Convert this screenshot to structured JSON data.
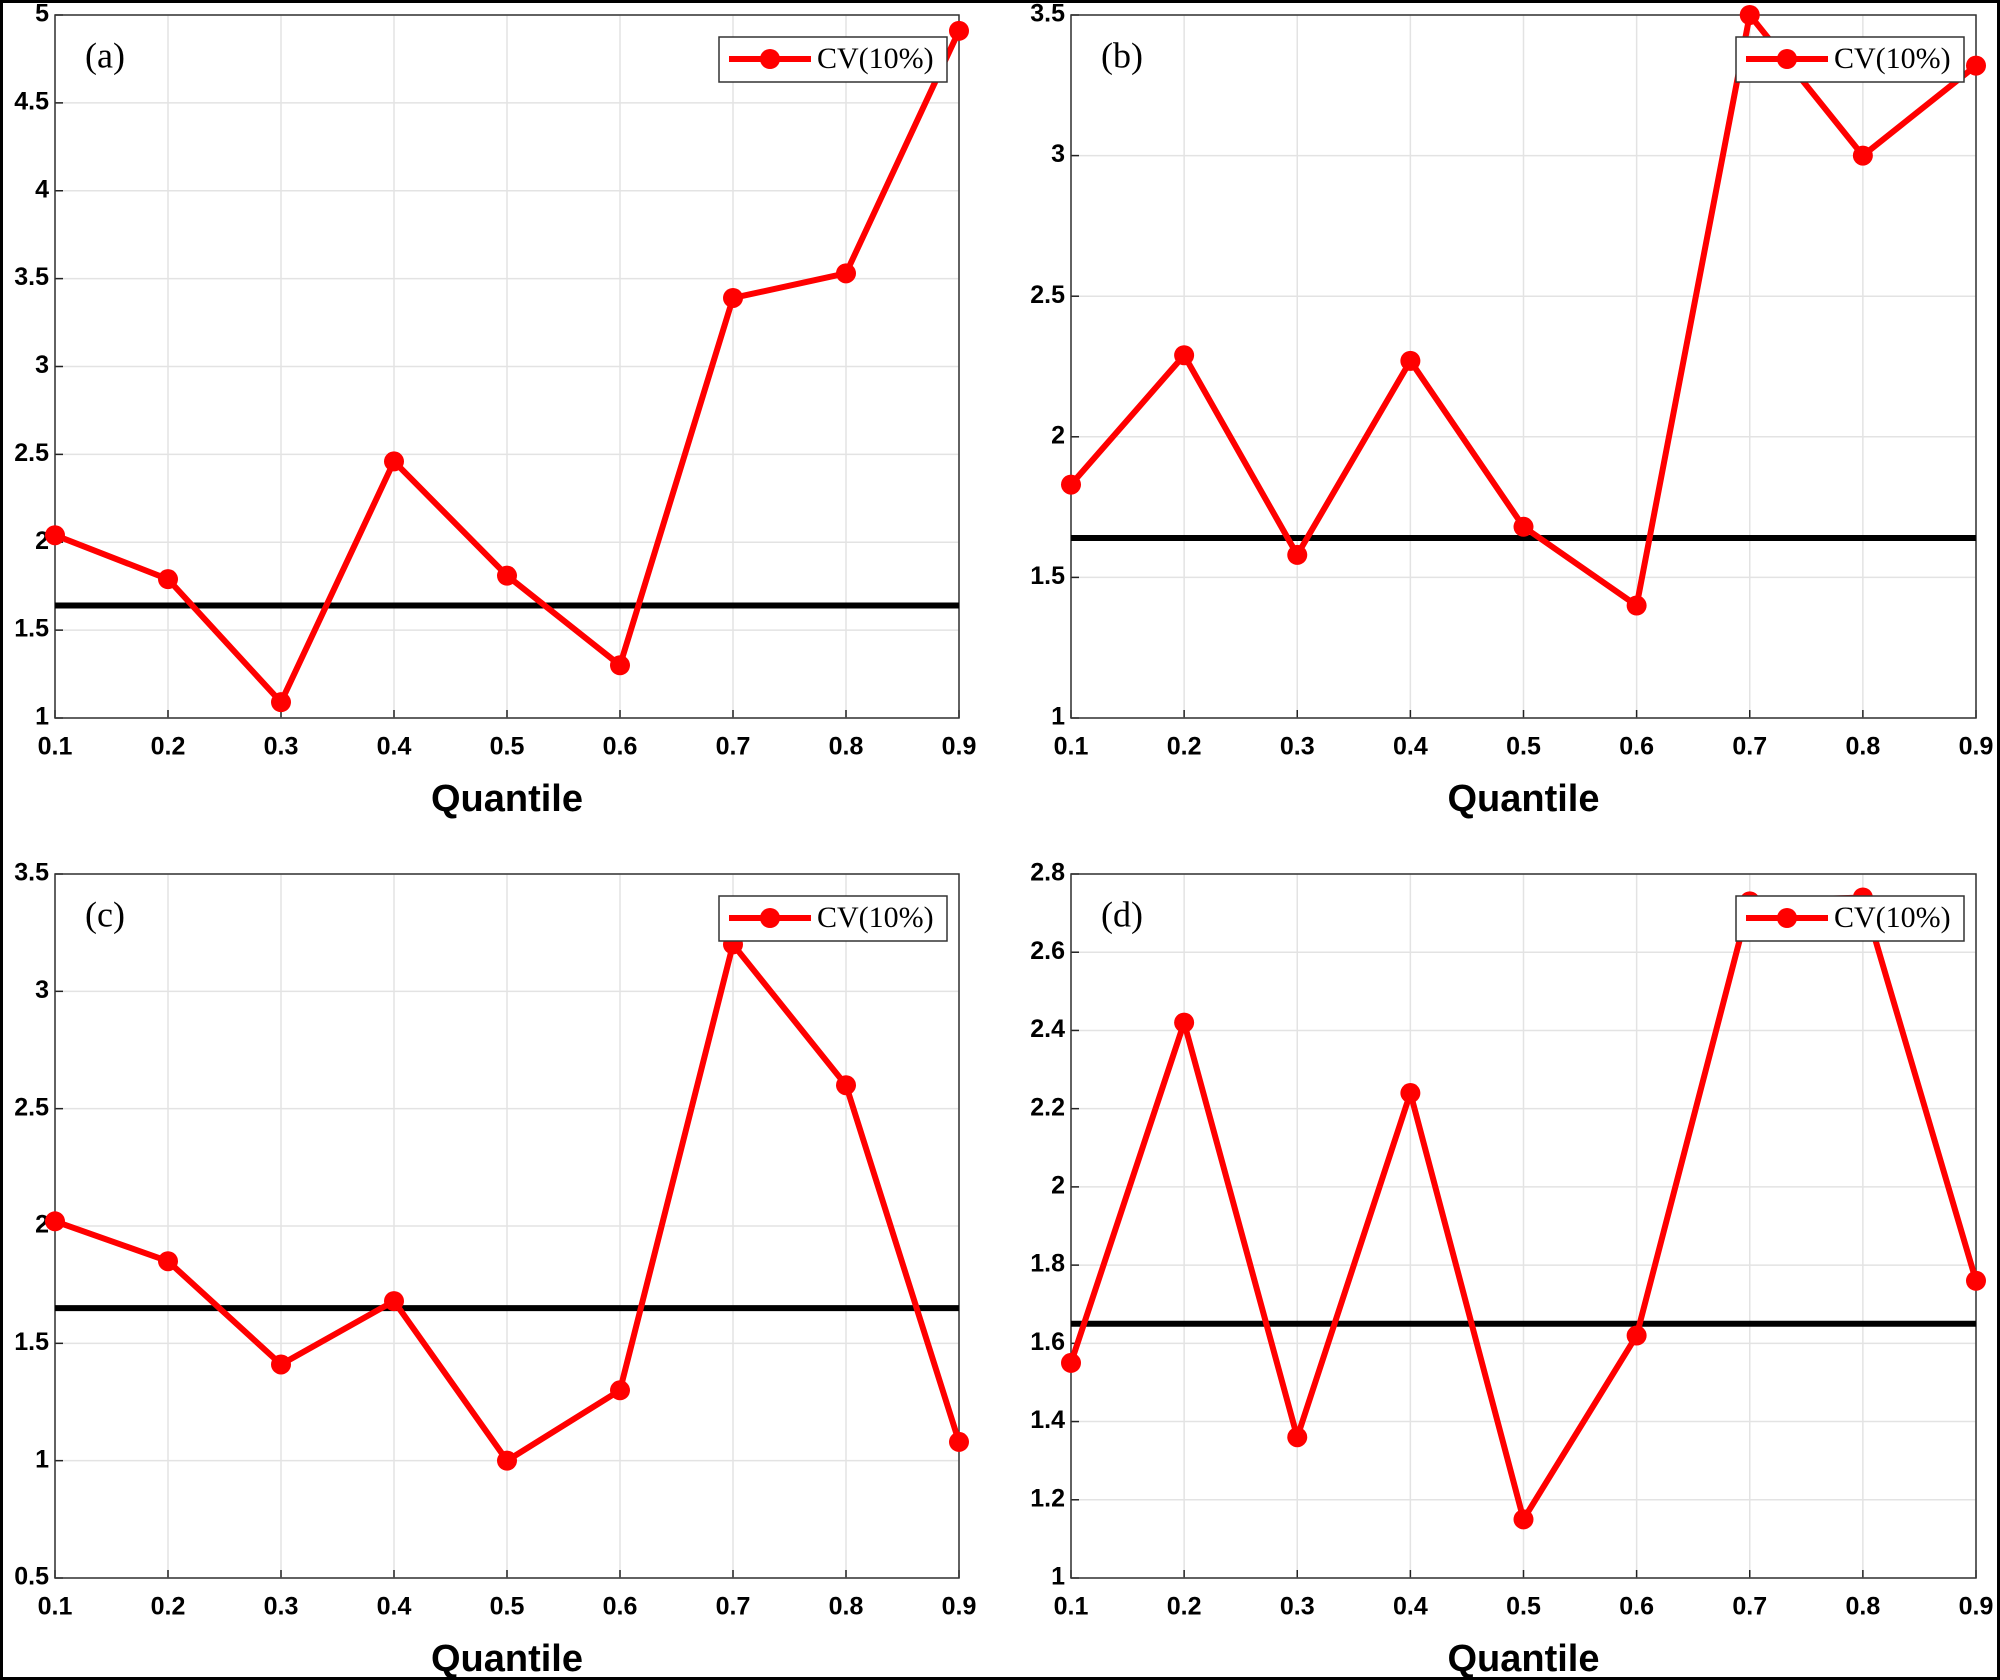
{
  "chart_data": [
    {
      "type": "line",
      "annotation": "(a)",
      "xlabel": "Quantile",
      "x": [
        0.1,
        0.2,
        0.3,
        0.4,
        0.5,
        0.6,
        0.7,
        0.8,
        0.9
      ],
      "series": [
        {
          "name": "CV(10%)",
          "color": "#ff0000",
          "values": [
            2.04,
            1.79,
            1.09,
            2.46,
            1.81,
            1.3,
            3.39,
            3.53,
            4.91
          ]
        }
      ],
      "reference_line": {
        "value": 1.64,
        "color": "#000000"
      },
      "xlim": [
        0.1,
        0.9
      ],
      "xticks": [
        0.1,
        0.2,
        0.3,
        0.4,
        0.5,
        0.6,
        0.7,
        0.8,
        0.9
      ],
      "ylim": [
        1,
        5
      ],
      "yticks": [
        1,
        1.5,
        2,
        2.5,
        3,
        3.5,
        4,
        4.5,
        5
      ],
      "grid": true,
      "legend": "upper right"
    },
    {
      "type": "line",
      "annotation": "(b)",
      "xlabel": "Quantile",
      "x": [
        0.1,
        0.2,
        0.3,
        0.4,
        0.5,
        0.6,
        0.7,
        0.8,
        0.9
      ],
      "series": [
        {
          "name": "CV(10%)",
          "color": "#ff0000",
          "values": [
            1.83,
            2.29,
            1.58,
            2.27,
            1.68,
            1.4,
            3.5,
            3.0,
            3.32
          ]
        }
      ],
      "reference_line": {
        "value": 1.64,
        "color": "#000000"
      },
      "xlim": [
        0.1,
        0.9
      ],
      "xticks": [
        0.1,
        0.2,
        0.3,
        0.4,
        0.5,
        0.6,
        0.7,
        0.8,
        0.9
      ],
      "ylim": [
        1,
        3.5
      ],
      "yticks": [
        1,
        1.5,
        2,
        2.5,
        3,
        3.5
      ],
      "grid": true,
      "legend": "upper right"
    },
    {
      "type": "line",
      "annotation": "(c)",
      "xlabel": "Quantile",
      "x": [
        0.1,
        0.2,
        0.3,
        0.4,
        0.5,
        0.6,
        0.7,
        0.8,
        0.9
      ],
      "series": [
        {
          "name": "CV(10%)",
          "color": "#ff0000",
          "values": [
            2.02,
            1.85,
            1.41,
            1.68,
            1.0,
            1.3,
            3.2,
            2.6,
            1.08
          ]
        }
      ],
      "reference_line": {
        "value": 1.65,
        "color": "#000000"
      },
      "xlim": [
        0.1,
        0.9
      ],
      "xticks": [
        0.1,
        0.2,
        0.3,
        0.4,
        0.5,
        0.6,
        0.7,
        0.8,
        0.9
      ],
      "ylim": [
        0.5,
        3.5
      ],
      "yticks": [
        0.5,
        1,
        1.5,
        2,
        2.5,
        3,
        3.5
      ],
      "grid": true,
      "legend": "upper right"
    },
    {
      "type": "line",
      "annotation": "(d)",
      "xlabel": "Quantile",
      "x": [
        0.1,
        0.2,
        0.3,
        0.4,
        0.5,
        0.6,
        0.7,
        0.8,
        0.9
      ],
      "series": [
        {
          "name": "CV(10%)",
          "color": "#ff0000",
          "values": [
            1.55,
            2.42,
            1.36,
            2.24,
            1.15,
            1.62,
            2.73,
            2.74,
            1.76
          ]
        }
      ],
      "reference_line": {
        "value": 1.65,
        "color": "#000000"
      },
      "xlim": [
        0.1,
        0.9
      ],
      "xticks": [
        0.1,
        0.2,
        0.3,
        0.4,
        0.5,
        0.6,
        0.7,
        0.8,
        0.9
      ],
      "ylim": [
        1,
        2.8
      ],
      "yticks": [
        1,
        1.2,
        1.4,
        1.6,
        1.8,
        2,
        2.2,
        2.4,
        2.6,
        2.8
      ],
      "grid": true,
      "legend": "upper right"
    }
  ]
}
